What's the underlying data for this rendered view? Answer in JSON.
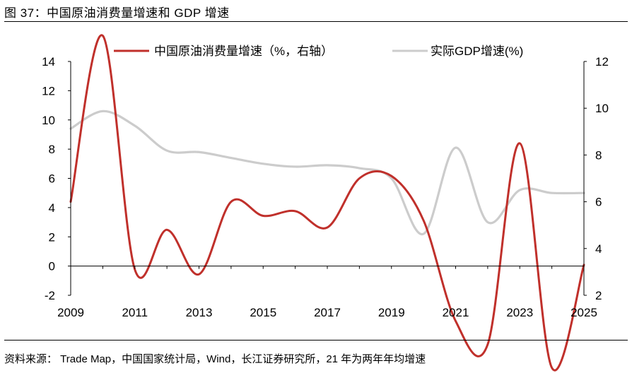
{
  "header": {
    "figure_title": "图 37：中国原油消费量增速和 GDP 增速"
  },
  "footer": {
    "source": "资料来源：  Trade Map，中国国家统计局，Wind，长江证券研究所，21 年为两年年均增速"
  },
  "colors": {
    "crude": "#c0302b",
    "gdp": "#cccccc",
    "axis": "#000000"
  },
  "chart_data": {
    "type": "line",
    "title": "中国原油消费量增速和 GDP 增速",
    "x_ticks": [
      "2009",
      "2011",
      "2013",
      "2015",
      "2017",
      "2019",
      "2021",
      "2023",
      "2025"
    ],
    "x_range": [
      2009,
      2025
    ],
    "left_axis": {
      "ticks": [
        "14",
        "12",
        "10",
        "8",
        "6",
        "4",
        "2",
        "0",
        "-2"
      ],
      "ylim": [
        -2,
        14
      ]
    },
    "right_axis": {
      "ticks": [
        "12",
        "10",
        "8",
        "6",
        "4",
        "2"
      ],
      "ylim": [
        2,
        12
      ]
    },
    "series": [
      {
        "name": "实际GDP增速(%)",
        "axis": "left",
        "x": [
          2009,
          2010,
          2011,
          2012,
          2013,
          2014,
          2015,
          2016,
          2017,
          2018,
          2019,
          2020,
          2021,
          2022,
          2023,
          2024,
          2025
        ],
        "values": [
          9.4,
          10.6,
          9.6,
          7.9,
          7.8,
          7.4,
          7.0,
          6.8,
          6.9,
          6.7,
          6.0,
          2.2,
          8.1,
          3.0,
          5.2,
          5.0,
          5.0
        ]
      },
      {
        "name": "中国原油消费量增速（%，右轴）",
        "axis": "right",
        "x": [
          2009,
          2010,
          2011,
          2012,
          2013,
          2014,
          2015,
          2016,
          2017,
          2018,
          2019,
          2020,
          2021,
          2022,
          2023,
          2024,
          2025
        ],
        "values": [
          6.0,
          13.1,
          3.1,
          4.8,
          2.9,
          6.0,
          5.4,
          5.6,
          4.9,
          7.0,
          7.1,
          5.2,
          0.9,
          -0.1,
          8.5,
          -1.1,
          3.3
        ]
      }
    ],
    "legend": [
      {
        "label": "中国原油消费量增速（%，右轴）",
        "series": 1
      },
      {
        "label": "实际GDP增速(%)",
        "series": 0
      }
    ],
    "legend_position": "top"
  }
}
